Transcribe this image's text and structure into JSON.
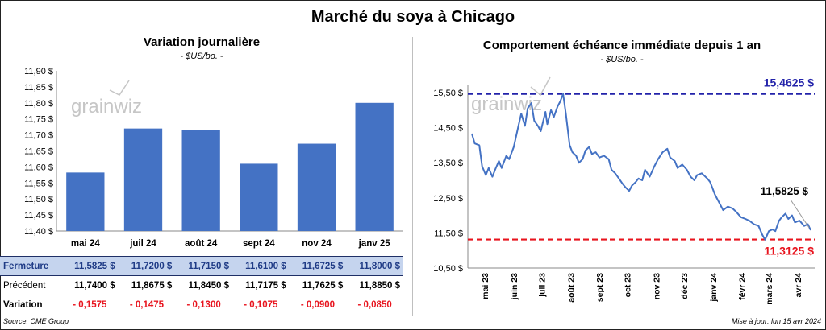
{
  "title": "Marché du soya à Chicago",
  "left": {
    "title": "Variation journalière",
    "subtitle": "- $US/bo. -",
    "watermark": "grainwiz",
    "table": {
      "rows": [
        {
          "label": "Fermeture",
          "values": [
            "11,5825  $",
            "11,7200  $",
            "11,7150  $",
            "11,6100  $",
            "11,6725  $",
            "11,8000  $"
          ]
        },
        {
          "label": "Précédent",
          "values": [
            "11,7400  $",
            "11,8675  $",
            "11,8450  $",
            "11,7175  $",
            "11,7625  $",
            "11,8850  $"
          ]
        },
        {
          "label": "Variation",
          "values": [
            "- 0,1575",
            "- 0,1475",
            "- 0,1300",
            "- 0,1075",
            "- 0,0900",
            "- 0,0850"
          ]
        }
      ]
    }
  },
  "right": {
    "title": "Comportement  échéance immédiate depuis 1 an",
    "subtitle": "- $US/bo. -",
    "watermark": "grainwiz",
    "annotations": {
      "high": "15,4625 $",
      "low": "11,3125 $",
      "last": "11,5825 $"
    }
  },
  "footer": {
    "source": "Source: CME Group",
    "updated": "Mise à jour: lun 15 avr 2024"
  },
  "colors": {
    "bar": "#4472c4",
    "line": "#4472c4",
    "high": "#2222aa",
    "low": "#e8141e"
  },
  "chart_data": [
    {
      "type": "bar",
      "categories": [
        "mai 24",
        "juil 24",
        "août 24",
        "sept 24",
        "nov 24",
        "janv 25"
      ],
      "values": [
        11.5825,
        11.72,
        11.715,
        11.61,
        11.6725,
        11.8
      ],
      "ylim": [
        11.4,
        11.9
      ],
      "yticks": [
        "11,40 $",
        "11,45 $",
        "11,50 $",
        "11,55 $",
        "11,60 $",
        "11,65 $",
        "11,70 $",
        "11,75 $",
        "11,80 $",
        "11,85 $",
        "11,90 $"
      ],
      "grid": false
    },
    {
      "type": "line",
      "ylim": [
        10.5,
        15.5
      ],
      "yticks": [
        "10,50 $",
        "11,50 $",
        "12,50 $",
        "13,50 $",
        "14,50 $",
        "15,50 $"
      ],
      "xticks": [
        "mai 23",
        "juin 23",
        "juil 23",
        "août 23",
        "sept 23",
        "oct 23",
        "nov 23",
        "déc 23",
        "janv 24",
        "févr 24",
        "mars 24",
        "avr 24"
      ],
      "reference_lines": [
        {
          "label": "15,4625 $",
          "value": 15.4625
        },
        {
          "label": "11,3125 $",
          "value": 11.3125
        }
      ],
      "series": [
        {
          "points": [
            [
              "2023-04-17",
              14.33
            ],
            [
              "2023-04-20",
              14.05
            ],
            [
              "2023-04-25",
              14.0
            ],
            [
              "2023-04-28",
              13.4
            ],
            [
              "2023-05-02",
              13.15
            ],
            [
              "2023-05-05",
              13.35
            ],
            [
              "2023-05-09",
              13.1
            ],
            [
              "2023-05-12",
              13.3
            ],
            [
              "2023-05-16",
              13.55
            ],
            [
              "2023-05-19",
              13.35
            ],
            [
              "2023-05-24",
              13.7
            ],
            [
              "2023-05-27",
              13.6
            ],
            [
              "2023-06-01",
              13.95
            ],
            [
              "2023-06-06",
              14.55
            ],
            [
              "2023-06-09",
              14.9
            ],
            [
              "2023-06-13",
              14.55
            ],
            [
              "2023-06-16",
              15.05
            ],
            [
              "2023-06-20",
              15.2
            ],
            [
              "2023-06-23",
              14.7
            ],
            [
              "2023-06-27",
              14.55
            ],
            [
              "2023-06-30",
              14.4
            ],
            [
              "2023-07-05",
              14.95
            ],
            [
              "2023-07-07",
              14.6
            ],
            [
              "2023-07-11",
              15.0
            ],
            [
              "2023-07-14",
              14.8
            ],
            [
              "2023-07-18",
              15.1
            ],
            [
              "2023-07-21",
              15.25
            ],
            [
              "2023-07-24",
              15.46
            ],
            [
              "2023-07-27",
              14.9
            ],
            [
              "2023-07-31",
              14.0
            ],
            [
              "2023-08-03",
              13.8
            ],
            [
              "2023-08-07",
              13.7
            ],
            [
              "2023-08-10",
              13.5
            ],
            [
              "2023-08-14",
              13.6
            ],
            [
              "2023-08-17",
              13.85
            ],
            [
              "2023-08-21",
              13.95
            ],
            [
              "2023-08-24",
              13.75
            ],
            [
              "2023-08-28",
              13.8
            ],
            [
              "2023-09-01",
              13.65
            ],
            [
              "2023-09-06",
              13.7
            ],
            [
              "2023-09-11",
              13.6
            ],
            [
              "2023-09-14",
              13.3
            ],
            [
              "2023-09-18",
              13.2
            ],
            [
              "2023-09-22",
              13.05
            ],
            [
              "2023-09-26",
              12.9
            ],
            [
              "2023-09-29",
              12.8
            ],
            [
              "2023-10-03",
              12.7
            ],
            [
              "2023-10-06",
              12.85
            ],
            [
              "2023-10-10",
              12.95
            ],
            [
              "2023-10-13",
              13.05
            ],
            [
              "2023-10-17",
              13.0
            ],
            [
              "2023-10-20",
              13.3
            ],
            [
              "2023-10-25",
              13.1
            ],
            [
              "2023-10-30",
              13.4
            ],
            [
              "2023-11-03",
              13.6
            ],
            [
              "2023-11-08",
              13.8
            ],
            [
              "2023-11-13",
              13.9
            ],
            [
              "2023-11-16",
              13.65
            ],
            [
              "2023-11-21",
              13.55
            ],
            [
              "2023-11-24",
              13.35
            ],
            [
              "2023-11-29",
              13.45
            ],
            [
              "2023-12-04",
              13.3
            ],
            [
              "2023-12-08",
              13.1
            ],
            [
              "2023-12-12",
              13.0
            ],
            [
              "2023-12-15",
              13.15
            ],
            [
              "2023-12-20",
              13.2
            ],
            [
              "2023-12-26",
              13.05
            ],
            [
              "2023-12-29",
              12.95
            ],
            [
              "2024-01-03",
              12.6
            ],
            [
              "2024-01-08",
              12.35
            ],
            [
              "2024-01-12",
              12.15
            ],
            [
              "2024-01-17",
              12.25
            ],
            [
              "2024-01-22",
              12.2
            ],
            [
              "2024-01-26",
              12.1
            ],
            [
              "2024-01-31",
              11.95
            ],
            [
              "2024-02-05",
              11.9
            ],
            [
              "2024-02-09",
              11.85
            ],
            [
              "2024-02-14",
              11.75
            ],
            [
              "2024-02-19",
              11.7
            ],
            [
              "2024-02-23",
              11.45
            ],
            [
              "2024-02-26",
              11.31
            ],
            [
              "2024-03-01",
              11.55
            ],
            [
              "2024-03-05",
              11.6
            ],
            [
              "2024-03-08",
              11.55
            ],
            [
              "2024-03-12",
              11.85
            ],
            [
              "2024-03-15",
              11.95
            ],
            [
              "2024-03-19",
              12.05
            ],
            [
              "2024-03-22",
              11.9
            ],
            [
              "2024-03-26",
              12.0
            ],
            [
              "2024-03-29",
              11.8
            ],
            [
              "2024-04-03",
              11.85
            ],
            [
              "2024-04-08",
              11.7
            ],
            [
              "2024-04-12",
              11.75
            ],
            [
              "2024-04-15",
              11.58
            ]
          ]
        }
      ]
    }
  ]
}
